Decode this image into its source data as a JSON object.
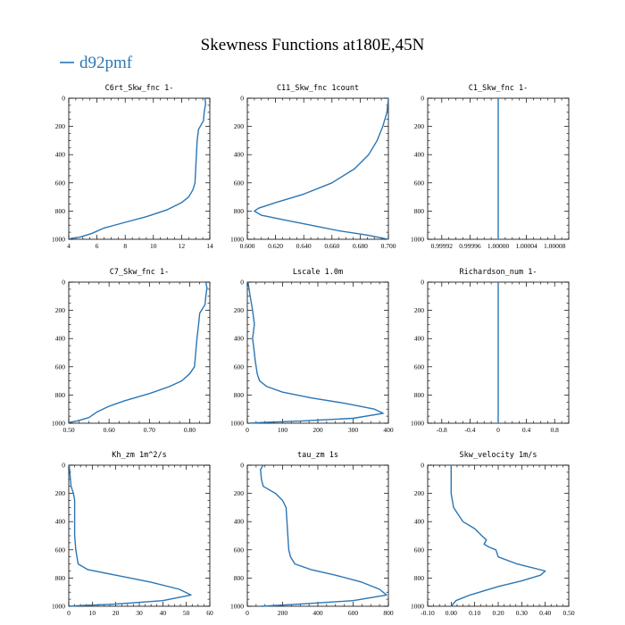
{
  "figure": {
    "title": "Skewness Functions at180E,45N",
    "legend": {
      "label": "d92pmf",
      "color": "#2a76b5",
      "placement": "top-left"
    }
  },
  "chart_data": [
    {
      "type": "line",
      "title": "C6rt_Skw_fnc   1-",
      "xlim": [
        4,
        14
      ],
      "ylim": [
        1000,
        0
      ],
      "xticks": [
        4,
        6,
        8,
        10,
        12,
        14
      ],
      "xticklabels": [
        "4",
        "6",
        "8",
        "10",
        "12",
        "14"
      ],
      "yticks": [
        0,
        200,
        400,
        600,
        800,
        1000
      ],
      "yticklabels": [
        "0",
        "200",
        "400",
        "600",
        "800",
        "1000"
      ],
      "series": [
        {
          "color": "#2a76b5",
          "x": [
            13.65,
            13.7,
            13.6,
            13.55,
            13.2,
            13.1,
            13.05,
            13.0,
            12.95,
            12.8,
            12.5,
            12.0,
            11.0,
            9.5,
            8.0,
            6.5,
            5.6,
            4.8,
            4.1
          ],
          "y": [
            0,
            40,
            100,
            160,
            220,
            300,
            400,
            500,
            600,
            650,
            700,
            740,
            790,
            840,
            880,
            920,
            960,
            985,
            995
          ]
        }
      ]
    },
    {
      "type": "line",
      "title": "C11_Skw_fnc   1count",
      "xlim": [
        0.6,
        0.7
      ],
      "ylim": [
        1000,
        0
      ],
      "xticks": [
        0.6,
        0.62,
        0.64,
        0.66,
        0.68,
        0.7
      ],
      "xticklabels": [
        "0.600",
        "0.620",
        "0.640",
        "0.660",
        "0.680",
        "0.700"
      ],
      "yticks": [
        0,
        200,
        400,
        600,
        800,
        1000
      ],
      "yticklabels": [
        "0",
        "200",
        "400",
        "600",
        "800",
        "1000"
      ],
      "series": [
        {
          "color": "#2a76b5",
          "x": [
            0.7,
            0.699,
            0.696,
            0.692,
            0.686,
            0.676,
            0.66,
            0.64,
            0.62,
            0.608,
            0.605,
            0.61,
            0.625,
            0.645,
            0.665,
            0.685,
            0.695,
            0.7
          ],
          "y": [
            0,
            100,
            200,
            300,
            400,
            500,
            600,
            680,
            740,
            780,
            800,
            830,
            860,
            900,
            940,
            970,
            990,
            1000
          ]
        }
      ]
    },
    {
      "type": "line",
      "title": "C1_Skw_fnc   1-",
      "xlim": [
        0.9999,
        1.0001
      ],
      "ylim": [
        1000,
        0
      ],
      "xticks": [
        0.99992,
        0.99996,
        1.0,
        1.00004,
        1.00008
      ],
      "xticklabels": [
        "0.99992",
        "0.99996",
        "1.00000",
        "1.00004",
        "1.00008"
      ],
      "yticks": [
        0,
        200,
        400,
        600,
        800,
        1000
      ],
      "yticklabels": [
        "0",
        "200",
        "400",
        "600",
        "800",
        "1000"
      ],
      "series": [
        {
          "color": "#2a76b5",
          "x": [
            1.0,
            1.0
          ],
          "y": [
            0,
            1000
          ]
        }
      ]
    },
    {
      "type": "line",
      "title": "C7_Skw_fnc   1-",
      "xlim": [
        0.5,
        0.85
      ],
      "ylim": [
        1000,
        0
      ],
      "xticks": [
        0.5,
        0.6,
        0.7,
        0.8
      ],
      "xticklabels": [
        "0.50",
        "0.60",
        "0.70",
        "0.80"
      ],
      "yticks": [
        0,
        200,
        400,
        600,
        800,
        1000
      ],
      "yticklabels": [
        "0",
        "200",
        "400",
        "600",
        "800",
        "1000"
      ],
      "series": [
        {
          "color": "#2a76b5",
          "x": [
            0.84,
            0.843,
            0.84,
            0.838,
            0.825,
            0.822,
            0.818,
            0.815,
            0.812,
            0.8,
            0.78,
            0.75,
            0.7,
            0.64,
            0.6,
            0.57,
            0.55,
            0.52,
            0.5
          ],
          "y": [
            0,
            40,
            100,
            160,
            220,
            300,
            400,
            500,
            600,
            650,
            700,
            740,
            790,
            840,
            880,
            920,
            960,
            985,
            995
          ]
        }
      ]
    },
    {
      "type": "line",
      "title": "Lscale   1.0m",
      "xlim": [
        0,
        400
      ],
      "ylim": [
        1000,
        0
      ],
      "xticks": [
        0,
        100,
        200,
        300,
        400
      ],
      "xticklabels": [
        "0",
        "100",
        "200",
        "300",
        "400"
      ],
      "yticks": [
        0,
        200,
        400,
        600,
        800,
        1000
      ],
      "yticklabels": [
        "0",
        "200",
        "400",
        "600",
        "800",
        "1000"
      ],
      "series": [
        {
          "color": "#2a76b5",
          "x": [
            2,
            8,
            15,
            20,
            15,
            20,
            22,
            25,
            28,
            35,
            55,
            100,
            180,
            280,
            360,
            385,
            300,
            150,
            40,
            5
          ],
          "y": [
            0,
            100,
            200,
            300,
            400,
            500,
            550,
            600,
            650,
            700,
            740,
            780,
            820,
            860,
            900,
            930,
            965,
            985,
            995,
            1000
          ]
        }
      ]
    },
    {
      "type": "line",
      "title": "Richardson_num   1-",
      "xlim": [
        -1,
        1
      ],
      "ylim": [
        1000,
        0
      ],
      "xticks": [
        -0.8,
        -0.4,
        0,
        0.4,
        0.8
      ],
      "xticklabels": [
        "-0.8",
        "-0.4",
        "0",
        "0.4",
        "0.8"
      ],
      "yticks": [
        0,
        200,
        400,
        600,
        800,
        1000
      ],
      "yticklabels": [
        "0",
        "200",
        "400",
        "600",
        "800",
        "1000"
      ],
      "series": [
        {
          "color": "#2a76b5",
          "x": [
            0,
            0
          ],
          "y": [
            0,
            1000
          ]
        }
      ]
    },
    {
      "type": "line",
      "title": "Kh_zm   1m^2/s",
      "xlim": [
        0,
        60
      ],
      "ylim": [
        1000,
        0
      ],
      "xticks": [
        0,
        10,
        20,
        30,
        40,
        50,
        60
      ],
      "xticklabels": [
        "0",
        "10",
        "20",
        "30",
        "40",
        "50",
        "60"
      ],
      "yticks": [
        0,
        200,
        400,
        600,
        800,
        1000
      ],
      "yticklabels": [
        "0",
        "200",
        "400",
        "600",
        "800",
        "1000"
      ],
      "series": [
        {
          "color": "#2a76b5",
          "x": [
            0.2,
            1,
            2,
            2.5,
            2.5,
            2.5,
            2.5,
            3,
            4,
            8,
            20,
            35,
            47,
            52,
            40,
            20,
            5,
            0.5
          ],
          "y": [
            0,
            150,
            200,
            250,
            300,
            400,
            500,
            600,
            700,
            740,
            780,
            830,
            880,
            920,
            960,
            985,
            995,
            1000
          ]
        }
      ]
    },
    {
      "type": "line",
      "title": "tau_zm   1s",
      "xlim": [
        0,
        800
      ],
      "ylim": [
        1000,
        0
      ],
      "xticks": [
        0,
        200,
        400,
        600,
        800
      ],
      "xticklabels": [
        "0",
        "200",
        "400",
        "600",
        "800"
      ],
      "yticks": [
        0,
        200,
        400,
        600,
        800,
        1000
      ],
      "yticklabels": [
        "0",
        "200",
        "400",
        "600",
        "800",
        "1000"
      ],
      "series": [
        {
          "color": "#2a76b5",
          "x": [
            90,
            75,
            80,
            90,
            160,
            200,
            220,
            225,
            230,
            235,
            245,
            270,
            360,
            500,
            650,
            750,
            790,
            600,
            300,
            80
          ],
          "y": [
            0,
            30,
            100,
            150,
            200,
            250,
            300,
            400,
            500,
            600,
            650,
            700,
            740,
            780,
            830,
            880,
            920,
            960,
            985,
            1000
          ]
        }
      ]
    },
    {
      "type": "line",
      "title": "Skw_velocity   1m/s",
      "xlim": [
        -0.1,
        0.5
      ],
      "ylim": [
        1000,
        0
      ],
      "xticks": [
        -0.1,
        0,
        0.1,
        0.2,
        0.3,
        0.4,
        0.5
      ],
      "xticklabels": [
        "-0.10",
        "0.00",
        "0.10",
        "0.20",
        "0.30",
        "0.40",
        "0.50"
      ],
      "yticks": [
        0,
        200,
        400,
        600,
        800,
        1000
      ],
      "yticklabels": [
        "0",
        "200",
        "400",
        "600",
        "800",
        "1000"
      ],
      "series": [
        {
          "color": "#2a76b5",
          "x": [
            0.0,
            0.0,
            0.0,
            0.01,
            0.05,
            0.1,
            0.13,
            0.15,
            0.14,
            0.16,
            0.19,
            0.2,
            0.28,
            0.4,
            0.38,
            0.3,
            0.2,
            0.08,
            0.02,
            0.0
          ],
          "y": [
            0,
            100,
            200,
            300,
            400,
            450,
            500,
            530,
            560,
            580,
            600,
            650,
            700,
            750,
            780,
            820,
            860,
            920,
            960,
            1000
          ]
        }
      ]
    }
  ]
}
